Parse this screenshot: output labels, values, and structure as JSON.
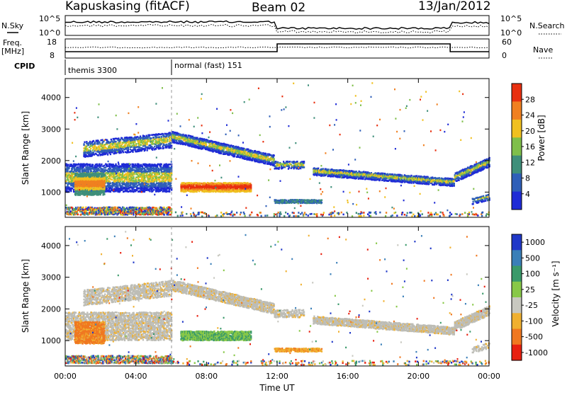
{
  "header": {
    "station": "Kapuskasing (fitACF)",
    "beam": "Beam 02",
    "date": "13/Jan/2012"
  },
  "top_panels": {
    "nsky_label": "N.Sky",
    "nsearch_label": "N.Search",
    "nsky_ticks": [
      "10^5",
      "10^0"
    ],
    "nsearch_ticks": [
      "10^5",
      "10^0"
    ],
    "freq_label_1": "Freq.",
    "freq_label_2": "[MHz]",
    "freq_ticks": [
      "18",
      "8"
    ],
    "nave_label": "Nave",
    "nave_ticks": [
      "60",
      "0"
    ],
    "cpid_label": "CPID",
    "cpid_modes": [
      {
        "start_hour": 0,
        "label": "themis 3300"
      },
      {
        "start_hour": 6,
        "label": "normal (fast) 151"
      }
    ]
  },
  "chart_data": [
    {
      "type": "heatmap",
      "quantity": "power",
      "ylabel": "Slant Range [km]",
      "xlim": [
        0,
        24
      ],
      "ylim": [
        200,
        4600
      ],
      "y_ticks": [
        1000,
        2000,
        3000,
        4000
      ],
      "colorbar": {
        "label": "Power [dB]",
        "ticks": [
          "4",
          "8",
          "12",
          "16",
          "20",
          "24",
          "28"
        ],
        "colors": [
          "#1f2bd6",
          "#2f5fb8",
          "#3f8f7a",
          "#7fbf4a",
          "#f0c020",
          "#f08020",
          "#e83010"
        ]
      }
    },
    {
      "type": "heatmap",
      "quantity": "velocity",
      "ylabel": "Slant Range [km]",
      "xlabel": "Time UT",
      "xlim": [
        0,
        24
      ],
      "ylim": [
        200,
        4600
      ],
      "y_ticks": [
        1000,
        2000,
        3000,
        4000
      ],
      "x_ticks": [
        "00:00",
        "04:00",
        "08:00",
        "12:00",
        "16:00",
        "20:00",
        "00:00"
      ],
      "colorbar": {
        "label": "Velocity [m s⁻¹]",
        "ticks": [
          "1000",
          "500",
          "100",
          "25",
          "-25",
          "-100",
          "-500",
          "-1000"
        ],
        "colors": [
          "#2038c8",
          "#3a7fb8",
          "#3a9a6a",
          "#88c848",
          "#c8c8c0",
          "#f0b030",
          "#f07820",
          "#e82010"
        ]
      }
    }
  ],
  "colors": {
    "ground_scatter": "#bdbdb6",
    "dashed_marker": "#999999"
  }
}
